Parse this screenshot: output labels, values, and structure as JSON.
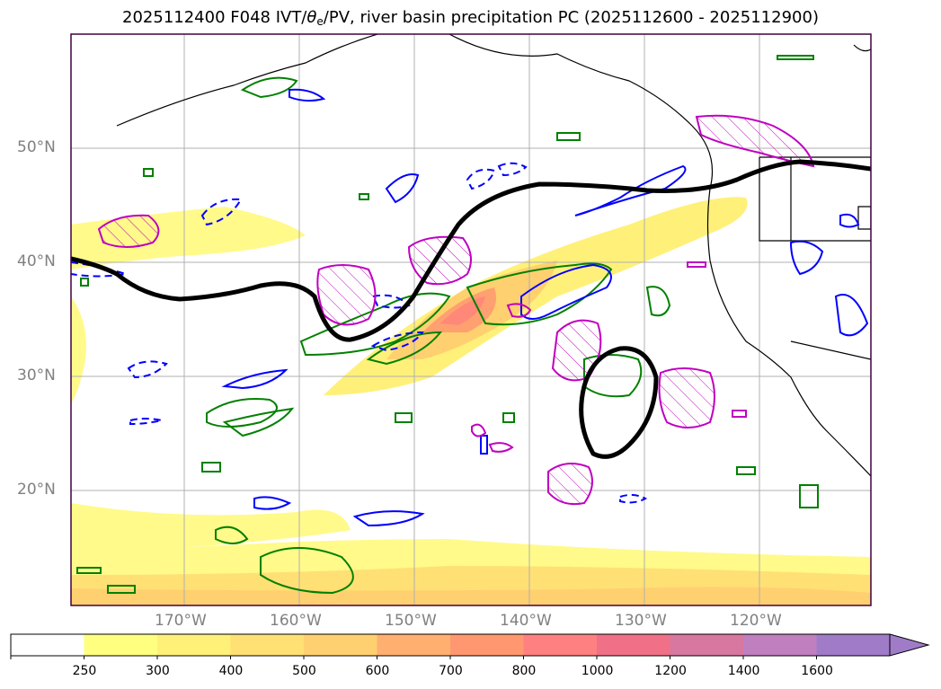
{
  "title": {
    "prefix": "2025112400 F048 IVT/",
    "theta": "θ",
    "theta_sub": "e",
    "suffix": "/PV, river basin precipitation PC (2025112600 - 2025112900)"
  },
  "lat_labels": [
    "50°N",
    "40°N",
    "30°N",
    "20°N"
  ],
  "lon_labels": [
    "170°W",
    "160°W",
    "150°W",
    "140°W",
    "130°W",
    "120°W"
  ],
  "colorbar": {
    "ticks": [
      "250",
      "300",
      "400",
      "500",
      "600",
      "700",
      "800",
      "1000",
      "1200",
      "1400",
      "1600"
    ],
    "colors": [
      "#ffffff",
      "#ffff80",
      "#fff07a",
      "#ffe075",
      "#ffd070",
      "#ffb070",
      "#ff9870",
      "#ff8080",
      "#f07088",
      "#d878a0",
      "#c080c0",
      "#a07cc8"
    ]
  },
  "colors": {
    "jet_line": "#000000",
    "pv_positive": "#c000c0",
    "theta_e_green": "#008000",
    "theta_e_blue": "#0000ff",
    "frame": "#400040"
  }
}
